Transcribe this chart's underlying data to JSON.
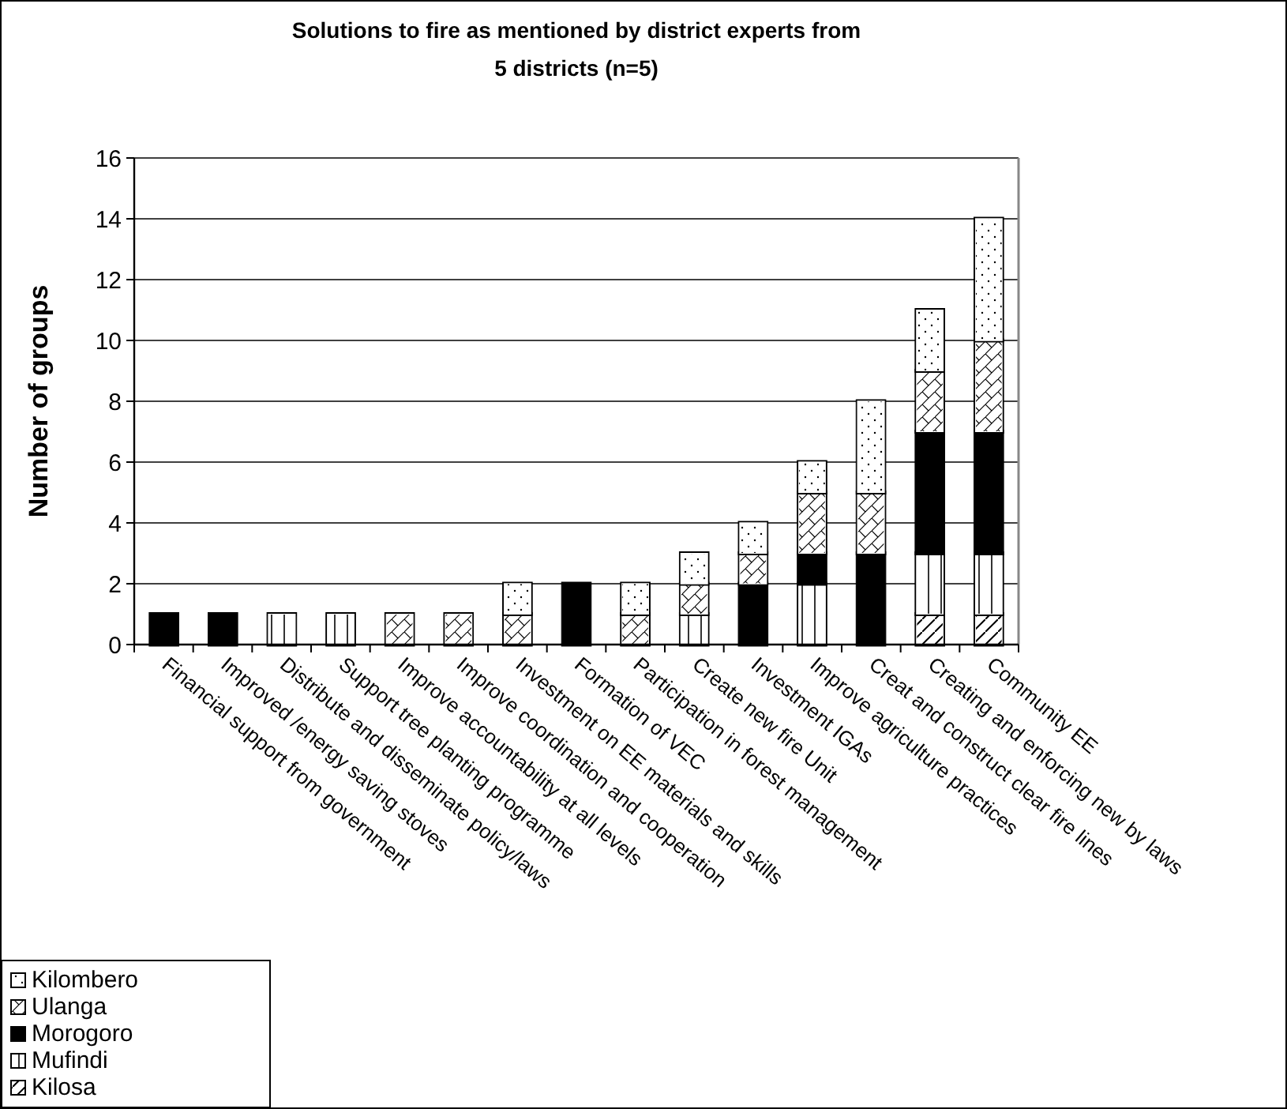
{
  "chart_data": {
    "type": "bar",
    "stacked": true,
    "title": "Solutions to fire as mentioned by district experts from 5 districts (n=5)",
    "ylabel": "Number of groups",
    "categories": [
      "Financial support from government",
      "Improved /energy saving stoves",
      "Distribute and disseminate policy/laws",
      "Support tree planting programme",
      "Improve accountability at all levels",
      "Improve coordination and cooperation",
      "Investment on EE materials and skills",
      "Formation of VEC",
      "Participation in forest management",
      "Create new fire Unit",
      "Investment IGAs",
      "Improve agriculture practices",
      "Creat and construct clear fire lines",
      "Creating and enforcing  new by laws",
      "Community EE"
    ],
    "series": [
      {
        "name": "Kilosa",
        "color": "#ffffff",
        "values": [
          0,
          0,
          0,
          0,
          0,
          0,
          0,
          0,
          0,
          0,
          0,
          0,
          0,
          1,
          1
        ]
      },
      {
        "name": "Mufindi",
        "color": "#ffffff",
        "values": [
          0,
          0,
          1,
          1,
          0,
          0,
          0,
          0,
          0,
          1,
          0,
          2,
          0,
          2,
          2
        ]
      },
      {
        "name": "Morogoro",
        "color": "#000000",
        "values": [
          1,
          1,
          0,
          0,
          0,
          0,
          0,
          2,
          0,
          0,
          2,
          1,
          3,
          4,
          4
        ]
      },
      {
        "name": "Ulanga",
        "color": "#ffffff",
        "values": [
          0,
          0,
          0,
          0,
          1,
          1,
          1,
          0,
          1,
          1,
          1,
          2,
          2,
          2,
          3
        ]
      },
      {
        "name": "Kilombero",
        "color": "#ffffff",
        "values": [
          0,
          0,
          0,
          0,
          0,
          0,
          1,
          0,
          1,
          1,
          1,
          1,
          3,
          2,
          4
        ]
      }
    ],
    "ylim": [
      0,
      16
    ],
    "yticks": [
      0,
      2,
      4,
      6,
      8,
      10,
      12,
      14,
      16
    ],
    "grid": "y",
    "legend": "bottom left"
  }
}
